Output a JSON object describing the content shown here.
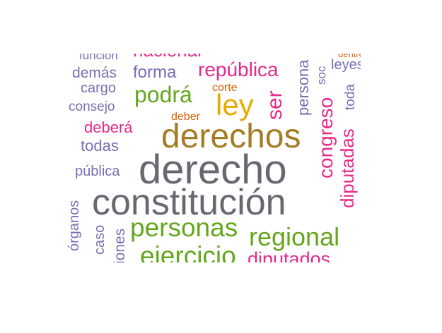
{
  "colors": {
    "slate": "#666a70",
    "olive": "#a57c24",
    "green": "#66a61e",
    "magenta": "#e7298a",
    "lavender": "#7570b3",
    "gold": "#e6ab02",
    "orange": "#d95f02"
  },
  "words": {
    "derecho": "derecho",
    "constitucion": "constitución",
    "derechos": "derechos",
    "personas": "personas",
    "regional": "regional",
    "ejercicio": "ejercicio",
    "ley": "ley",
    "podra": "podrá",
    "republica": "república",
    "congreso": "congreso",
    "diputadas": "diputadas",
    "diputados": "diputados",
    "debera": "deberá",
    "ser": "ser",
    "forma": "forma",
    "nacional": "nacional",
    "demas": "demás",
    "todas": "todas",
    "publica": "pública",
    "cargo": "cargo",
    "consejo": "consejo",
    "funcion": "función",
    "organos": "órganos",
    "caso": "caso",
    "iones": "iones",
    "corte": "corte",
    "deber": "deber",
    "leyes": "leyes",
    "persona": "persona",
    "soc": "soc",
    "toda": "toda",
    "dentro": "dentro"
  }
}
